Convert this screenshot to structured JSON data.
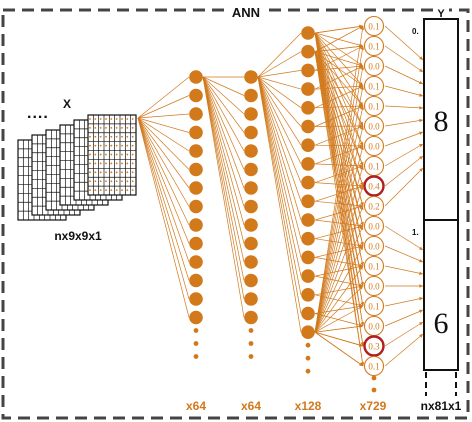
{
  "title": "ANN",
  "input": {
    "label": "X",
    "ellipsis": "....",
    "shape_label": "nx9x9x1",
    "frame_count": 6
  },
  "layers": [
    {
      "count_label": "x64",
      "visible_nodes": 14
    },
    {
      "count_label": "x64",
      "visible_nodes": 14
    },
    {
      "count_label": "x128",
      "visible_nodes": 17
    },
    {
      "count_label": "x729",
      "node_values": [
        "0.1",
        "0.1",
        "0.0",
        "0.1",
        "0.1",
        "0.0",
        "0.0",
        "0.1",
        "0.4",
        "0.2",
        "0.0",
        "0.0",
        "0.1",
        "0.0",
        "0.1",
        "0.0",
        "0.3",
        "0.1"
      ],
      "highlighted": [
        "0.4",
        "0.3"
      ]
    }
  ],
  "output": {
    "label": "Y",
    "shape_label": "nx81x1",
    "cells": [
      {
        "index": "0.",
        "digit": "8"
      },
      {
        "index": "1.",
        "digit": "6"
      }
    ]
  },
  "colors": {
    "accent": "#d2791c",
    "highlight": "#b02020",
    "frame": "#444444",
    "text": "#111111"
  }
}
